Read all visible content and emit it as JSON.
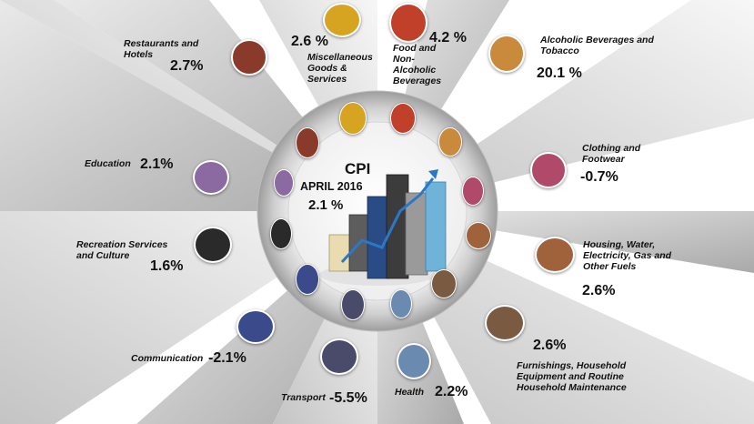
{
  "center": {
    "title": "CPI",
    "period": "APRIL 2016",
    "overall_change": "2.1 %"
  },
  "categories": [
    {
      "id": "alcohol",
      "label": "Alcoholic Beverages and Tobacco",
      "change": "20.1 %",
      "icon": "wine-bottle-icon",
      "color": "#c98a3c"
    },
    {
      "id": "clothing",
      "label": "Clothing and Footwear",
      "change": "-0.7%",
      "icon": "clothing-icon",
      "color": "#b04a6a"
    },
    {
      "id": "housing",
      "label": "Housing, Water, Electricity, Gas and Other Fuels",
      "change": "2.6%",
      "icon": "house-icon",
      "color": "#a0623a"
    },
    {
      "id": "furnishings",
      "label": "Furnishings, Household Equipment and Routine Household Maintenance",
      "change": "2.6%",
      "icon": "furniture-icon",
      "color": "#7a5a40"
    },
    {
      "id": "health",
      "label": "Health",
      "change": "2.2%",
      "icon": "health-icon",
      "color": "#6a8ab0"
    },
    {
      "id": "transport",
      "label": "Transport",
      "change": "-5.5%",
      "icon": "transport-icon",
      "color": "#4a4a6a"
    },
    {
      "id": "communication",
      "label": "Communication",
      "change": "-2.1%",
      "icon": "phone-icon",
      "color": "#3a4a8a"
    },
    {
      "id": "recreation",
      "label": "Recreation Services and Culture",
      "change": "1.6%",
      "icon": "tv-icon",
      "color": "#2a2a2a"
    },
    {
      "id": "education",
      "label": "Education",
      "change": "2.1%",
      "icon": "education-icon",
      "color": "#8a6aa0"
    },
    {
      "id": "restaurants",
      "label": "Restaurants and Hotels",
      "change": "2.7%",
      "icon": "restaurant-icon",
      "color": "#8a3a2a"
    },
    {
      "id": "misc",
      "label": "Miscellaneous Goods & Services",
      "change": "2.6 %",
      "icon": "jewelry-icon",
      "color": "#d6a420"
    },
    {
      "id": "food",
      "label": "Food and Non-Alcoholic Beverages",
      "change": "4.2 %",
      "icon": "food-icon",
      "color": "#c0402a"
    }
  ]
}
